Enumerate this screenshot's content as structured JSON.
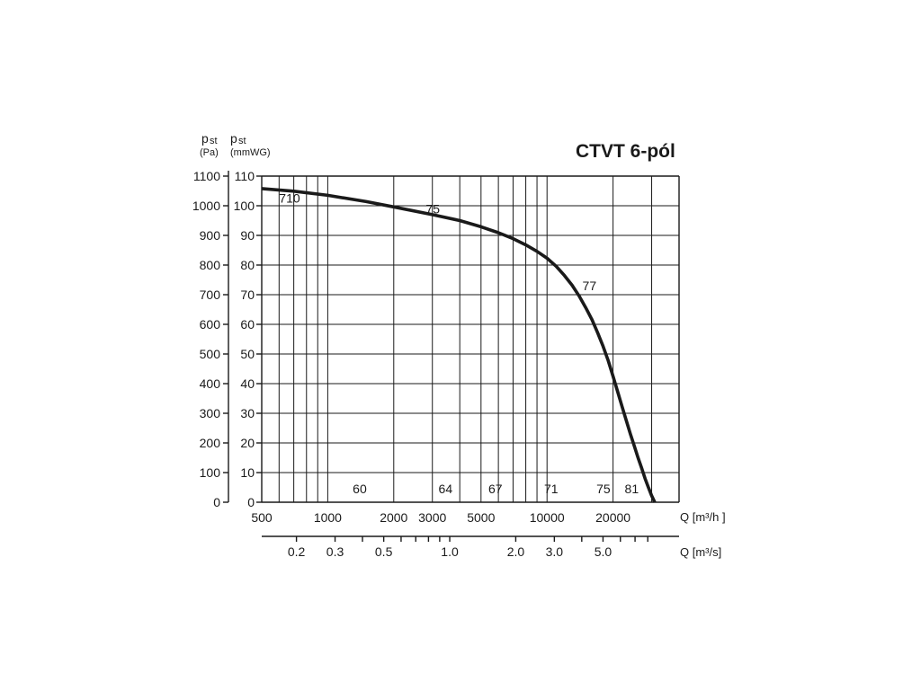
{
  "chart_data": {
    "type": "line",
    "title": "CTVT 6-pól",
    "left_axis": {
      "symbol": "p",
      "subscript": "st",
      "unit": "(Pa)"
    },
    "right_axis": {
      "symbol": "p",
      "subscript": "st",
      "unit": "(mmWG)"
    },
    "pa_ticks": [
      "1100",
      "1000",
      "900",
      "800",
      "700",
      "600",
      "500",
      "400",
      "300",
      "200",
      "100",
      "0"
    ],
    "mmwg_ticks": [
      "110",
      "100",
      "90",
      "80",
      "70",
      "60",
      "50",
      "40",
      "30",
      "20",
      "10",
      "0"
    ],
    "ylim": [
      0,
      1100
    ],
    "x_scale": "log",
    "xlim": [
      500,
      40000
    ],
    "x_axis_label": "Q [m³/h ]",
    "x_ticks": [
      "500",
      "1000",
      "2000",
      "3000",
      "5000",
      "10000",
      "20000"
    ],
    "x2_axis_label": "Q [m³/s]",
    "x2_ticks": [
      "0.2",
      "0.3",
      "0.5",
      "1.0",
      "2.0",
      "3.0",
      "5.0"
    ],
    "series": [
      {
        "x": [
          500,
          700,
          1000,
          1500,
          2000,
          3000,
          4000,
          5000,
          6000,
          7000,
          8000,
          9000,
          10000,
          11000,
          12000,
          13000,
          14000,
          15000,
          16000,
          17000,
          18000,
          19000,
          20000,
          21000,
          22000,
          23000,
          24000,
          25000,
          26000,
          27000,
          28000,
          29000,
          30000,
          31000,
          32000,
          33000
        ],
        "y": [
          1058,
          1049,
          1035,
          1014,
          996,
          970,
          950,
          929,
          909,
          889,
          868,
          846,
          823,
          796,
          765,
          732,
          696,
          657,
          617,
          572,
          527,
          478,
          425,
          372,
          322,
          275,
          230,
          190,
          150,
          115,
          80,
          50,
          22,
          0,
          0,
          0
        ]
      }
    ],
    "efficiency_labels": [
      "710",
      "75",
      "77",
      "60",
      "64",
      "67",
      "71",
      "75",
      "81"
    ]
  }
}
